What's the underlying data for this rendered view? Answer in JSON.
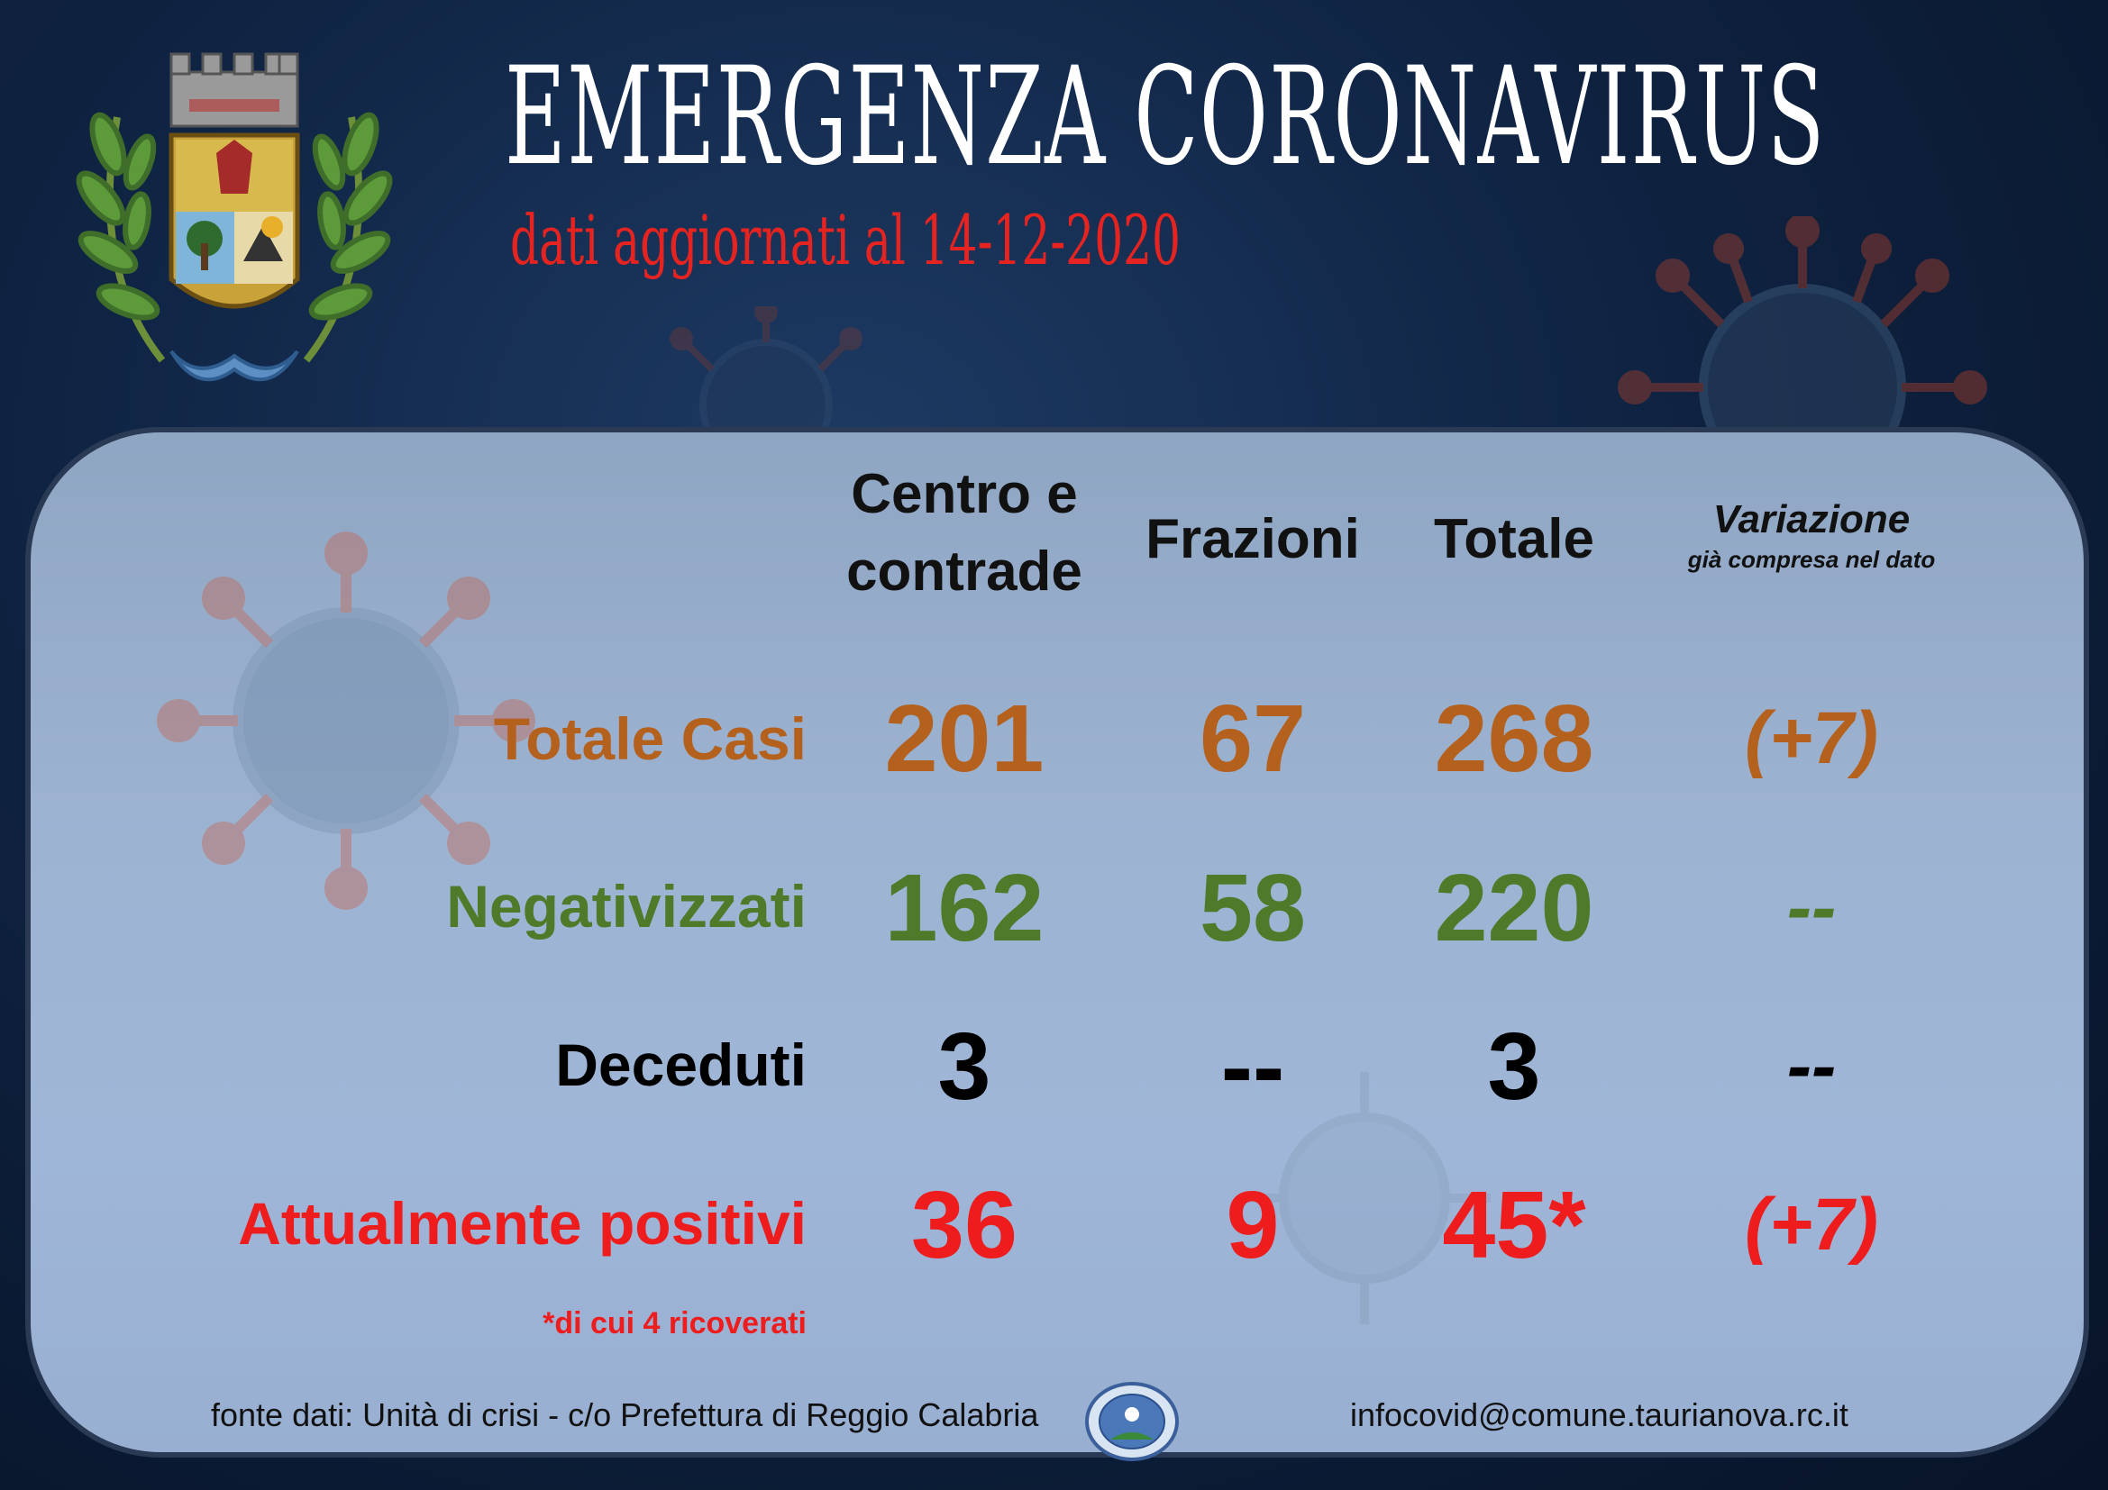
{
  "header": {
    "title": "EMERGENZA CORONAVIRUS",
    "subtitle": "dati aggiornati al 14-12-2020"
  },
  "table": {
    "columns": {
      "centro": [
        "Centro e",
        "contrade"
      ],
      "frazioni": "Frazioni",
      "totale": "Totale",
      "variazione_title": "Variazione",
      "variazione_sub": "già compresa nel dato"
    },
    "rows": [
      {
        "label": "Totale Casi",
        "centro": "201",
        "frazioni": "67",
        "totale": "268",
        "variazione": "(+7)",
        "color": "#b5611e"
      },
      {
        "label": "Negativizzati",
        "centro": "162",
        "frazioni": "58",
        "totale": "220",
        "variazione": "--",
        "color": "#4e7a29"
      },
      {
        "label": "Deceduti",
        "centro": "3",
        "frazioni": "--",
        "totale": "3",
        "variazione": "--",
        "color": "#000000"
      },
      {
        "label": "Attualmente positivi",
        "centro": "36",
        "frazioni": "9",
        "totale": "45*",
        "variazione": "(+7)",
        "color": "#ee1c1c"
      }
    ],
    "note": "*di cui 4 ricoverati"
  },
  "footer": {
    "source": "fonte dati: Unità di crisi - c/o Prefettura di Reggio Calabria",
    "email": "infocovid@comune.taurianova.rc.it"
  },
  "icons": {
    "crest": "municipal-crest-icon",
    "seal": "prefettura-seal-icon",
    "virus": "virus-icon"
  }
}
